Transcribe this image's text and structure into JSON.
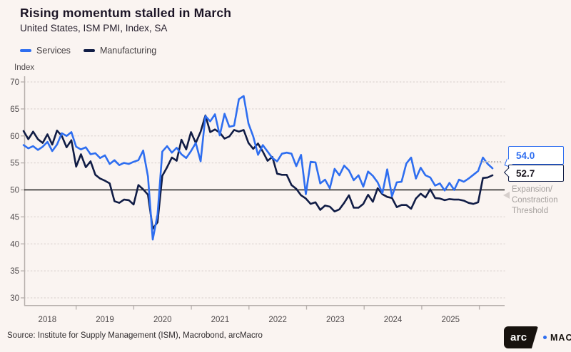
{
  "header": {
    "title": "Rising momentum stalled in March",
    "subtitle": "United States, ISM PMI, Index, SA"
  },
  "legend": {
    "position": "top-left",
    "items": [
      {
        "label": "Services",
        "color": "#2e6ef0"
      },
      {
        "label": "Manufacturing",
        "color": "#101c45"
      }
    ]
  },
  "chart_data": {
    "type": "line",
    "title": "Rising momentum stalled in March",
    "subtitle": "United States, ISM PMI, Index, SA",
    "unit_label": "Index",
    "frequency": "monthly",
    "x_start": "2018-01",
    "x_end": "2026-03",
    "x_tick_labels": [
      "2018",
      "2019",
      "2020",
      "2021",
      "2022",
      "2023",
      "2024",
      "2025"
    ],
    "y_ticks": [
      30,
      35,
      40,
      45,
      50,
      55,
      60,
      65,
      70
    ],
    "ylim": [
      28.5,
      71
    ],
    "grid": "dotted-horizontal",
    "threshold": {
      "value": 50,
      "label": "Expansion/\nConstraction\nThreshold"
    },
    "series": [
      {
        "name": "Services",
        "color": "#2e6ef0",
        "end_label": "54.0",
        "values": [
          58.3,
          57.7,
          58.1,
          57.4,
          58.0,
          58.9,
          57.2,
          58.4,
          60.5,
          60.0,
          60.7,
          58.0,
          57.5,
          57.9,
          56.6,
          56.8,
          55.9,
          56.4,
          54.8,
          55.5,
          54.6,
          55.0,
          54.8,
          55.2,
          55.5,
          57.3,
          52.5,
          40.8,
          45.4,
          57.1,
          58.1,
          56.9,
          57.8,
          56.6,
          55.9,
          57.2,
          58.7,
          55.3,
          63.7,
          62.7,
          64.0,
          60.1,
          64.1,
          61.7,
          61.9,
          66.8,
          67.4,
          62.3,
          59.9,
          56.5,
          58.3,
          57.1,
          55.9,
          55.3,
          56.7,
          56.9,
          56.7,
          54.4,
          56.5,
          49.2,
          55.2,
          55.1,
          51.2,
          51.9,
          50.3,
          53.9,
          52.7,
          54.5,
          53.6,
          51.8,
          52.7,
          50.6,
          53.4,
          52.6,
          51.4,
          49.4,
          53.8,
          48.8,
          51.4,
          51.5,
          54.9,
          56.0,
          52.1,
          54.1,
          52.7,
          52.3,
          50.8,
          51.2,
          49.9,
          51.3,
          50.0,
          51.9,
          51.5,
          52.1,
          52.8,
          53.5,
          56.0,
          54.8,
          54.0
        ]
      },
      {
        "name": "Manufacturing",
        "color": "#101c45",
        "end_label": "52.7",
        "values": [
          60.9,
          59.4,
          60.8,
          59.4,
          58.7,
          60.3,
          58.4,
          61.0,
          60.0,
          57.9,
          59.2,
          54.3,
          56.6,
          54.2,
          55.3,
          52.8,
          52.1,
          51.7,
          51.2,
          47.9,
          47.6,
          48.2,
          48.1,
          47.3,
          50.9,
          50.1,
          49.1,
          42.8,
          44.0,
          52.6,
          54.2,
          56.0,
          55.4,
          59.3,
          57.5,
          60.7,
          58.7,
          60.8,
          63.8,
          60.7,
          61.2,
          60.6,
          59.5,
          59.9,
          61.1,
          60.8,
          61.1,
          58.7,
          57.6,
          58.6,
          57.1,
          55.4,
          56.1,
          53.0,
          52.8,
          52.8,
          50.9,
          50.2,
          49.0,
          48.4,
          47.4,
          47.7,
          46.3,
          47.1,
          46.9,
          46.0,
          46.4,
          47.6,
          49.0,
          46.7,
          46.7,
          47.4,
          49.1,
          47.8,
          50.3,
          49.2,
          48.7,
          48.5,
          46.8,
          47.2,
          47.2,
          46.5,
          48.4,
          49.3,
          48.6,
          50.1,
          48.5,
          48.4,
          48.1,
          48.3,
          48.2,
          48.2,
          48.0,
          47.6,
          47.4,
          47.7,
          52.2,
          52.3,
          52.7
        ]
      }
    ]
  },
  "annotations": {
    "services_end_label": "54.0",
    "manufacturing_end_label": "52.7",
    "threshold_label": "Expansion/\nConstraction\nThreshold"
  },
  "footer": {
    "source": "Source: Institute for Supply Management (ISM), Macrobond, arcMacro",
    "logo_arc": "arc",
    "logo_macro": "MACRO"
  }
}
